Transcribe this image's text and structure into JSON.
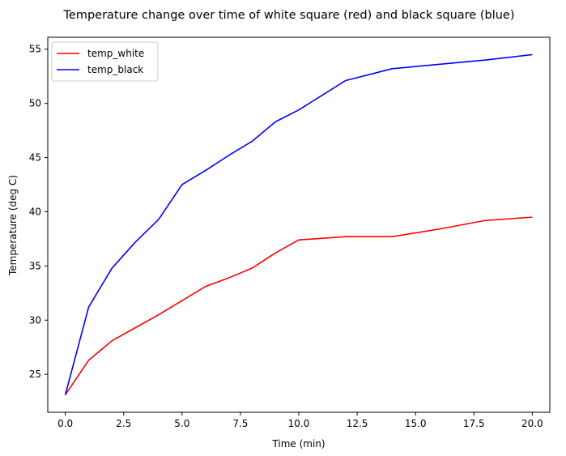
{
  "chart_data": {
    "type": "line",
    "title": "Temperature change over time of white square (red) and black square (blue)",
    "xlabel": "Time (min)",
    "ylabel": "Temperature (deg C)",
    "xlim": [
      -0.75,
      20.75
    ],
    "ylim": [
      21.5,
      56.1
    ],
    "xticks": [
      0.0,
      2.5,
      5.0,
      7.5,
      10.0,
      12.5,
      15.0,
      17.5,
      20.0
    ],
    "xtick_labels": [
      "0.0",
      "2.5",
      "5.0",
      "7.5",
      "10.0",
      "12.5",
      "15.0",
      "17.5",
      "20.0"
    ],
    "yticks": [
      25,
      30,
      35,
      40,
      45,
      50,
      55
    ],
    "ytick_labels": [
      "25",
      "30",
      "35",
      "40",
      "45",
      "50",
      "55"
    ],
    "grid": false,
    "legend_position": "top-left",
    "series": [
      {
        "name": "temp_white",
        "color": "#ff0000",
        "x": [
          0,
          1,
          2,
          3,
          4,
          5,
          6,
          7,
          8,
          9,
          10,
          12,
          14,
          16,
          18,
          20
        ],
        "y": [
          23.1,
          26.3,
          28.1,
          29.3,
          30.5,
          31.8,
          33.1,
          33.9,
          34.8,
          36.2,
          37.4,
          37.7,
          37.7,
          38.4,
          39.2,
          39.5
        ]
      },
      {
        "name": "temp_black",
        "color": "#0000ff",
        "x": [
          0,
          1,
          2,
          3,
          4,
          5,
          6,
          7,
          8,
          9,
          10,
          12,
          14,
          16,
          18,
          20
        ],
        "y": [
          23.1,
          31.2,
          34.8,
          37.2,
          39.3,
          42.5,
          43.8,
          45.2,
          46.5,
          48.3,
          49.4,
          52.1,
          53.2,
          53.6,
          54.0,
          54.5
        ]
      }
    ]
  }
}
